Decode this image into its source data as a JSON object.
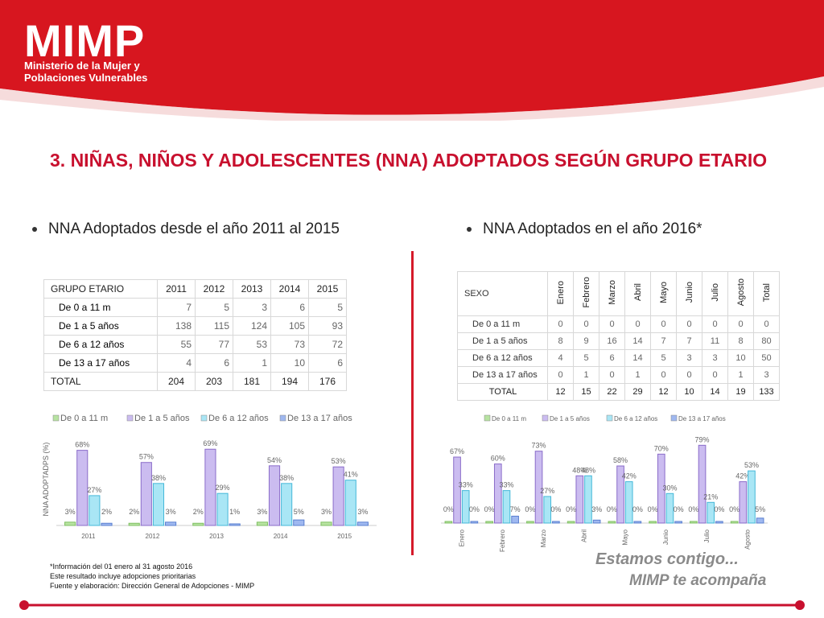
{
  "header": {
    "logo": "MIMP",
    "org_line1": "Ministerio de la Mujer y",
    "org_line2": "Poblaciones Vulnerables"
  },
  "title": "3. NIÑAS, NIÑOS Y ADOLESCENTES (NNA) ADOPTADOS SEGÚN GRUPO ETARIO",
  "left": {
    "bullet": "NNA Adoptados desde el año 2011 al 2015",
    "table": {
      "header": [
        "GRUPO ETARIO",
        "2011",
        "2012",
        "2013",
        "2014",
        "2015"
      ],
      "rows": [
        {
          "label": "De 0 a 11 m",
          "values": [
            "7",
            "5",
            "3",
            "6",
            "5"
          ]
        },
        {
          "label": "De 1 a 5 años",
          "values": [
            "138",
            "115",
            "124",
            "105",
            "93"
          ]
        },
        {
          "label": "De 6 a 12 años",
          "values": [
            "55",
            "77",
            "53",
            "73",
            "72"
          ]
        },
        {
          "label": "De 13 a 17 años",
          "values": [
            "4",
            "6",
            "1",
            "10",
            "6"
          ]
        }
      ],
      "total": {
        "label": "TOTAL",
        "values": [
          "204",
          "203",
          "181",
          "194",
          "176"
        ]
      }
    }
  },
  "right": {
    "bullet": "NNA Adoptados en el año 2016*",
    "table": {
      "header": [
        "SEXO",
        "Enero",
        "Febrero",
        "Marzo",
        "Abril",
        "Mayo",
        "Junio",
        "Julio",
        "Agosto",
        "Total"
      ],
      "rows": [
        {
          "label": "De 0 a 11 m",
          "values": [
            "0",
            "0",
            "0",
            "0",
            "0",
            "0",
            "0",
            "0",
            "0"
          ]
        },
        {
          "label": "De 1 a 5 años",
          "values": [
            "8",
            "9",
            "16",
            "14",
            "7",
            "7",
            "11",
            "8",
            "80"
          ]
        },
        {
          "label": "De 6 a 12 años",
          "values": [
            "4",
            "5",
            "6",
            "14",
            "5",
            "3",
            "3",
            "10",
            "50"
          ]
        },
        {
          "label": "De 13 a 17 años",
          "values": [
            "0",
            "1",
            "0",
            "1",
            "0",
            "0",
            "0",
            "1",
            "3"
          ]
        }
      ],
      "total": {
        "label": "TOTAL",
        "values": [
          "12",
          "15",
          "22",
          "29",
          "12",
          "10",
          "14",
          "19",
          "133"
        ]
      }
    }
  },
  "chart_data": [
    {
      "type": "bar",
      "ylabel": "NNA ADOPTADPS (%)",
      "categories": [
        "2011",
        "2012",
        "2013",
        "2014",
        "2015"
      ],
      "series": [
        {
          "name": "De 0 a 11 m",
          "values": [
            3,
            2,
            2,
            3,
            3
          ]
        },
        {
          "name": "De 1 a 5 años",
          "values": [
            68,
            57,
            69,
            54,
            53
          ]
        },
        {
          "name": "De 6 a 12 años",
          "values": [
            27,
            38,
            29,
            38,
            41
          ]
        },
        {
          "name": "De 13 a 17 años",
          "values": [
            2,
            3,
            1,
            5,
            3
          ]
        }
      ],
      "ylim": [
        0,
        75
      ],
      "legend": "top",
      "colors": [
        "#b7e3a1",
        "#cbbcf0",
        "#a9e6f5",
        "#9fb8f0"
      ]
    },
    {
      "type": "bar",
      "categories": [
        "Enero",
        "Febrero",
        "Marzo",
        "Abril",
        "Mayo",
        "Junio",
        "Julio",
        "Agosto"
      ],
      "series": [
        {
          "name": "De 0 a 11 m",
          "values": [
            0,
            0,
            0,
            0,
            0,
            0,
            0,
            0
          ]
        },
        {
          "name": "De 1 a 5 años",
          "values": [
            67,
            60,
            73,
            48,
            58,
            70,
            79,
            42
          ]
        },
        {
          "name": "De 6 a 12 años",
          "values": [
            33,
            33,
            27,
            48,
            42,
            30,
            21,
            53
          ]
        },
        {
          "name": "De 13 a 17 años",
          "values": [
            0,
            7,
            0,
            3,
            0,
            0,
            0,
            5
          ]
        }
      ],
      "ylim": [
        0,
        85
      ],
      "legend": "top",
      "colors": [
        "#b7e3a1",
        "#cbbcf0",
        "#a9e6f5",
        "#9fb8f0"
      ]
    }
  ],
  "notes": {
    "line1": "*Información del 01 enero al 31 agosto 2016",
    "line2": "Este resultado incluye adopciones prioritarias",
    "line3": "Fuente y elaboración: Dirección General de Adopciones - MIMP"
  },
  "slogan": {
    "line1": "Estamos contigo...",
    "line2": "MIMP te acompaña"
  }
}
